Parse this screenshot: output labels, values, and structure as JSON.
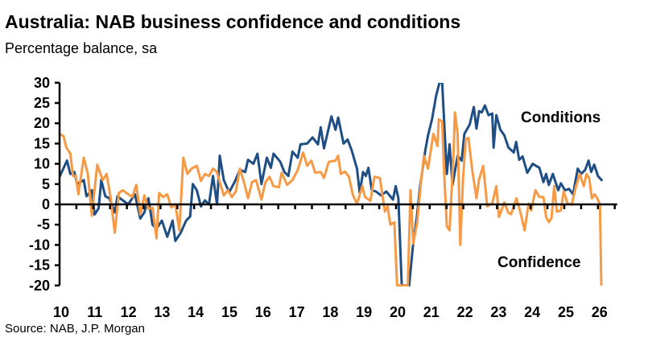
{
  "chart_data": {
    "type": "line",
    "title": "Australia: NAB business confidence and conditions",
    "subtitle": "Percentage balance, sa",
    "source": "Source: NAB, J.P. Morgan",
    "xlabel": "",
    "ylabel": "",
    "xlim": [
      2010,
      2026.5
    ],
    "ylim": [
      -20,
      30
    ],
    "yticks": [
      30,
      25,
      20,
      15,
      10,
      5,
      0,
      -5,
      -10,
      -15,
      -20
    ],
    "xticks": [
      {
        "year": 2010,
        "label": "10"
      },
      {
        "year": 2011,
        "label": "11"
      },
      {
        "year": 2012,
        "label": "12"
      },
      {
        "year": 2013,
        "label": "13"
      },
      {
        "year": 2014,
        "label": "14"
      },
      {
        "year": 2015,
        "label": "15"
      },
      {
        "year": 2016,
        "label": "16"
      },
      {
        "year": 2017,
        "label": "17"
      },
      {
        "year": 2018,
        "label": "18"
      },
      {
        "year": 2019,
        "label": "19"
      },
      {
        "year": 2020,
        "label": "20"
      },
      {
        "year": 2021,
        "label": "21"
      },
      {
        "year": 2022,
        "label": "22"
      },
      {
        "year": 2023,
        "label": "23"
      },
      {
        "year": 2024,
        "label": "24"
      },
      {
        "year": 2025,
        "label": "25"
      },
      {
        "year": 2026,
        "label": "26"
      }
    ],
    "grid": false,
    "legend": "inline labels",
    "series": [
      {
        "name": "Conditions",
        "color": "#1f4e85",
        "x": [
          2010.0,
          2010.22,
          2010.32,
          2010.44,
          2010.52,
          2010.72,
          2010.8,
          2010.96,
          2011.04,
          2011.16,
          2011.24,
          2011.36,
          2011.48,
          2011.64,
          2011.72,
          2011.88,
          2012.04,
          2012.24,
          2012.4,
          2012.52,
          2012.64,
          2012.76,
          2012.88,
          2013.04,
          2013.2,
          2013.36,
          2013.44,
          2013.6,
          2013.76,
          2013.88,
          2013.96,
          2014.08,
          2014.2,
          2014.32,
          2014.44,
          2014.56,
          2014.68,
          2014.76,
          2014.88,
          2015.04,
          2015.2,
          2015.36,
          2015.52,
          2015.6,
          2015.76,
          2015.88,
          2016.0,
          2016.16,
          2016.28,
          2016.36,
          2016.56,
          2016.68,
          2016.8,
          2016.92,
          2017.08,
          2017.16,
          2017.36,
          2017.52,
          2017.68,
          2017.76,
          2017.86,
          2018.08,
          2018.2,
          2018.28,
          2018.44,
          2018.56,
          2018.68,
          2018.84,
          2018.92,
          2019.02,
          2019.1,
          2019.18,
          2019.28,
          2019.4,
          2019.56,
          2019.71,
          2019.91,
          2019.99,
          2020.07,
          2020.17,
          2020.39,
          2020.5,
          2020.62,
          2020.71,
          2020.87,
          2020.95,
          2021.07,
          2021.19,
          2021.29,
          2021.37,
          2021.47,
          2021.51,
          2021.59,
          2021.68,
          2021.83,
          2021.95,
          2022.03,
          2022.19,
          2022.31,
          2022.39,
          2022.47,
          2022.55,
          2022.64,
          2022.75,
          2022.86,
          2022.9,
          2022.98,
          2023.1,
          2023.22,
          2023.34,
          2023.5,
          2023.57,
          2023.66,
          2023.76,
          2023.9,
          2024.06,
          2024.26,
          2024.38,
          2024.46,
          2024.54,
          2024.66,
          2024.82,
          2024.9,
          2025.02,
          2025.14,
          2025.26,
          2025.4,
          2025.5,
          2025.62,
          2025.72,
          2025.8,
          2025.89,
          2026.0,
          2026.13
        ],
        "values": [
          6.8,
          10.8,
          7.5,
          8,
          5,
          6,
          2,
          3.5,
          -2.5,
          -1,
          6,
          2,
          1.5,
          -2,
          2,
          1,
          0,
          2.5,
          -3.5,
          -2,
          1.5,
          -5,
          -6,
          -4,
          -8,
          -4,
          -9,
          -7,
          -4,
          -3,
          5,
          3.5,
          -0.5,
          1,
          0,
          7,
          0,
          12,
          6,
          3,
          5.5,
          8.5,
          8,
          11,
          10,
          12.5,
          5,
          11.5,
          9,
          12.5,
          10.5,
          8,
          7,
          13,
          11.5,
          14.8,
          15,
          16.5,
          14.8,
          19,
          13.8,
          21.7,
          18.4,
          21.4,
          15,
          16,
          13.4,
          8.8,
          2.8,
          8,
          7,
          9,
          3.5,
          3.2,
          2.2,
          3.2,
          1.2,
          4.5,
          1.5,
          -20,
          -20,
          -10.4,
          -3,
          4.2,
          13.4,
          17,
          21,
          26.7,
          30,
          30,
          14,
          7.5,
          14.8,
          4.8,
          12,
          10.8,
          17.4,
          19.7,
          24,
          18.7,
          23,
          22.7,
          24.4,
          22,
          22.4,
          14,
          22,
          18.4,
          17,
          14,
          12.8,
          15.4,
          11,
          11.8,
          7.8,
          10,
          9,
          5.5,
          7.5,
          4.8,
          7.5,
          3.5,
          5.2,
          3.5,
          3.8,
          2.5,
          8.8,
          7.5,
          8.5,
          10.8,
          8,
          9.8,
          7,
          5.8
        ]
      },
      {
        "name": "Confidence",
        "color": "#f79a45",
        "x": [
          2010.0,
          2010.12,
          2010.2,
          2010.32,
          2010.4,
          2010.48,
          2010.56,
          2010.72,
          2010.84,
          2010.96,
          2011.12,
          2011.28,
          2011.4,
          2011.52,
          2011.64,
          2011.76,
          2011.88,
          2012.04,
          2012.16,
          2012.28,
          2012.4,
          2012.52,
          2012.64,
          2012.76,
          2012.88,
          2012.96,
          2013.08,
          2013.2,
          2013.32,
          2013.44,
          2013.56,
          2013.68,
          2013.8,
          2013.92,
          2014.08,
          2014.2,
          2014.32,
          2014.44,
          2014.56,
          2014.68,
          2014.76,
          2014.88,
          2015.0,
          2015.12,
          2015.24,
          2015.36,
          2015.48,
          2015.6,
          2015.72,
          2015.84,
          2016.0,
          2016.12,
          2016.24,
          2016.36,
          2016.52,
          2016.6,
          2016.76,
          2016.92,
          2017.08,
          2017.24,
          2017.36,
          2017.48,
          2017.6,
          2017.76,
          2017.86,
          2018.0,
          2018.2,
          2018.28,
          2018.36,
          2018.48,
          2018.6,
          2018.72,
          2018.84,
          2019.0,
          2019.08,
          2019.24,
          2019.36,
          2019.52,
          2019.67,
          2019.75,
          2019.83,
          2019.95,
          2020.03,
          2020.35,
          2020.43,
          2020.51,
          2020.63,
          2020.75,
          2020.83,
          2020.95,
          2021.11,
          2021.23,
          2021.27,
          2021.37,
          2021.43,
          2021.51,
          2021.59,
          2021.71,
          2021.75,
          2021.83,
          2021.91,
          2021.99,
          2022.07,
          2022.15,
          2022.27,
          2022.39,
          2022.47,
          2022.59,
          2022.71,
          2022.86,
          2022.98,
          2023.06,
          2023.22,
          2023.34,
          2023.42,
          2023.58,
          2023.7,
          2023.82,
          2023.94,
          2024.02,
          2024.14,
          2024.26,
          2024.38,
          2024.46,
          2024.54,
          2024.62,
          2024.7,
          2024.78,
          2024.9,
          2024.98,
          2025.1,
          2025.22,
          2025.34,
          2025.46,
          2025.58,
          2025.66,
          2025.74,
          2025.82,
          2025.9,
          2025.98,
          2026.06,
          2026.1
        ],
        "values": [
          17.4,
          16.8,
          14,
          12.5,
          7,
          7,
          2.5,
          11.5,
          7.5,
          -2.8,
          9.8,
          6,
          7.5,
          1.5,
          -7,
          2.8,
          3.5,
          2.5,
          1.8,
          4.8,
          -2.5,
          2.2,
          -1.1,
          -0.8,
          -8.4,
          2.8,
          1.8,
          2.5,
          -0.8,
          0,
          -6.4,
          11.5,
          7.5,
          8.8,
          9.5,
          5.8,
          7.5,
          7,
          8.8,
          8,
          5.5,
          2.2,
          3.5,
          1.8,
          3.2,
          8.8,
          5.5,
          1.5,
          5.5,
          6,
          1.2,
          5.5,
          6.8,
          4.5,
          4.2,
          7.8,
          4.8,
          6,
          8.5,
          12.8,
          9.5,
          10.8,
          7.8,
          8,
          6.5,
          10.5,
          10.8,
          12,
          7.5,
          8.1,
          6.8,
          2.2,
          0.2,
          4.5,
          1.8,
          0.9,
          6.8,
          6.5,
          -1.8,
          -0.5,
          -5,
          -4.4,
          -20,
          -20,
          3.5,
          -9.7,
          -4.4,
          6.2,
          12,
          8.8,
          17.4,
          14.4,
          21,
          20.4,
          7.5,
          -5.4,
          -6.4,
          12.8,
          22.7,
          17.4,
          -10,
          6.2,
          16,
          16.4,
          8.1,
          1.5,
          6.2,
          9.5,
          -0.5,
          0.2,
          4.5,
          -3.1,
          0.5,
          -2.1,
          -2.4,
          1.5,
          -2.1,
          -6.4,
          0.2,
          -1.5,
          3.5,
          1.8,
          1.8,
          -3.1,
          -4.4,
          -3.4,
          4.5,
          -1.8,
          -1.5,
          3.2,
          0.2,
          -0.1,
          4.2,
          7.5,
          4.5,
          7.5,
          6.5,
          1.5,
          2.5,
          1.5,
          0,
          -20
        ]
      }
    ]
  }
}
